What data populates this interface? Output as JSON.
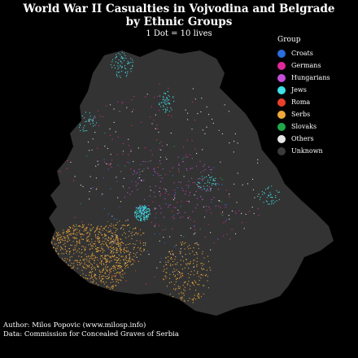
{
  "title_line1": "World War II Casualties in Vojvodina and Belgrade",
  "title_line2": "by Ethnic Groups",
  "subtitle": "1 Dot = 10 lives",
  "legend": {
    "title": "Group",
    "items": [
      {
        "label": "Croats",
        "color": "#2a6fdb"
      },
      {
        "label": "Germans",
        "color": "#e0289a"
      },
      {
        "label": "Hungarians",
        "color": "#c44fd8"
      },
      {
        "label": "Jews",
        "color": "#3fe0e6"
      },
      {
        "label": "Roma",
        "color": "#e8402a"
      },
      {
        "label": "Serbs",
        "color": "#f0a83a"
      },
      {
        "label": "Slovaks",
        "color": "#1ea84a"
      },
      {
        "label": "Others",
        "color": "#e6e6e6"
      },
      {
        "label": "Unknown",
        "color": "#3a3a3a"
      }
    ]
  },
  "author": "Author: Milos Popovic (www.milosp.info)",
  "source": "Data: Commission for Concealed Graves of Serbia",
  "map_fill": "#333333"
}
